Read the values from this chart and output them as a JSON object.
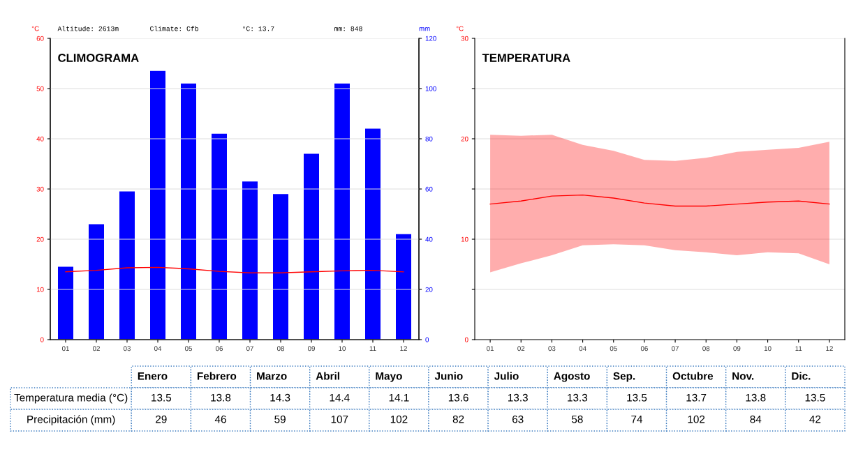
{
  "chart_data": [
    {
      "type": "bar",
      "title": "CLIMOGRAMA",
      "ylabel": "°C",
      "y2label": "mm",
      "categories": [
        "01",
        "02",
        "03",
        "04",
        "05",
        "06",
        "07",
        "08",
        "09",
        "10",
        "11",
        "12"
      ],
      "series": [
        {
          "type": "bar",
          "axis": "y2",
          "color": "#0000ff",
          "values": [
            29,
            46,
            59,
            107,
            102,
            82,
            63,
            58,
            74,
            102,
            84,
            42
          ]
        },
        {
          "type": "line",
          "color": "#ff0000",
          "values": [
            13.5,
            13.8,
            14.3,
            14.4,
            14.1,
            13.6,
            13.3,
            13.3,
            13.5,
            13.7,
            13.8,
            13.5
          ]
        }
      ],
      "ylim": [
        0,
        60
      ],
      "yticks": [
        0,
        10,
        20,
        30,
        40,
        50,
        60
      ],
      "y2lim": [
        0,
        120
      ],
      "y2ticks": [
        0,
        20,
        40,
        60,
        80,
        100,
        120
      ],
      "grid": "y",
      "marker": "none",
      "annotations": [
        "Altitude: 2613m",
        "Climate: Cfb",
        "°C: 13.7",
        "mm: 848"
      ]
    },
    {
      "type": "line",
      "title": "TEMPERATURA",
      "ylabel": "°C",
      "categories": [
        "01",
        "02",
        "03",
        "04",
        "05",
        "06",
        "07",
        "08",
        "09",
        "10",
        "11",
        "12"
      ],
      "series": [
        {
          "color": "#ff0000",
          "values": [
            13.5,
            13.8,
            14.3,
            14.4,
            14.1,
            13.6,
            13.3,
            13.3,
            13.5,
            13.7,
            13.8,
            13.5
          ],
          "lower": [
            6.7,
            7.6,
            8.4,
            9.4,
            9.5,
            9.4,
            8.9,
            8.7,
            8.4,
            8.7,
            8.6,
            7.5
          ],
          "upper": [
            20.4,
            20.3,
            20.4,
            19.4,
            18.8,
            17.9,
            17.8,
            18.1,
            18.7,
            18.9,
            19.1,
            19.7
          ]
        }
      ],
      "ylim": [
        0,
        30
      ],
      "yticks": [
        0,
        {
          "value": 5,
          "label": null
        },
        10,
        {
          "value": 15,
          "label": null
        },
        20,
        {
          "value": 25,
          "label": null
        },
        30
      ],
      "grid": "y",
      "marker": "none"
    },
    {
      "type": "other",
      "data_labels": true,
      "categories": [
        "Enero",
        "Febrero",
        "Marzo",
        "Abril",
        "Mayo",
        "Junio",
        "Julio",
        "Agosto",
        "Sep.",
        "Octubre",
        "Nov.",
        "Dic."
      ],
      "series": [
        {
          "name": "Temperatura media (°C)",
          "values": [
            13.5,
            13.8,
            14.3,
            14.4,
            14.1,
            13.6,
            13.3,
            13.3,
            13.5,
            13.7,
            13.8,
            13.5
          ]
        },
        {
          "name": "Precipitación (mm)",
          "values": [
            29,
            46,
            59,
            107,
            102,
            82,
            63,
            58,
            74,
            102,
            84,
            42
          ]
        }
      ]
    }
  ]
}
